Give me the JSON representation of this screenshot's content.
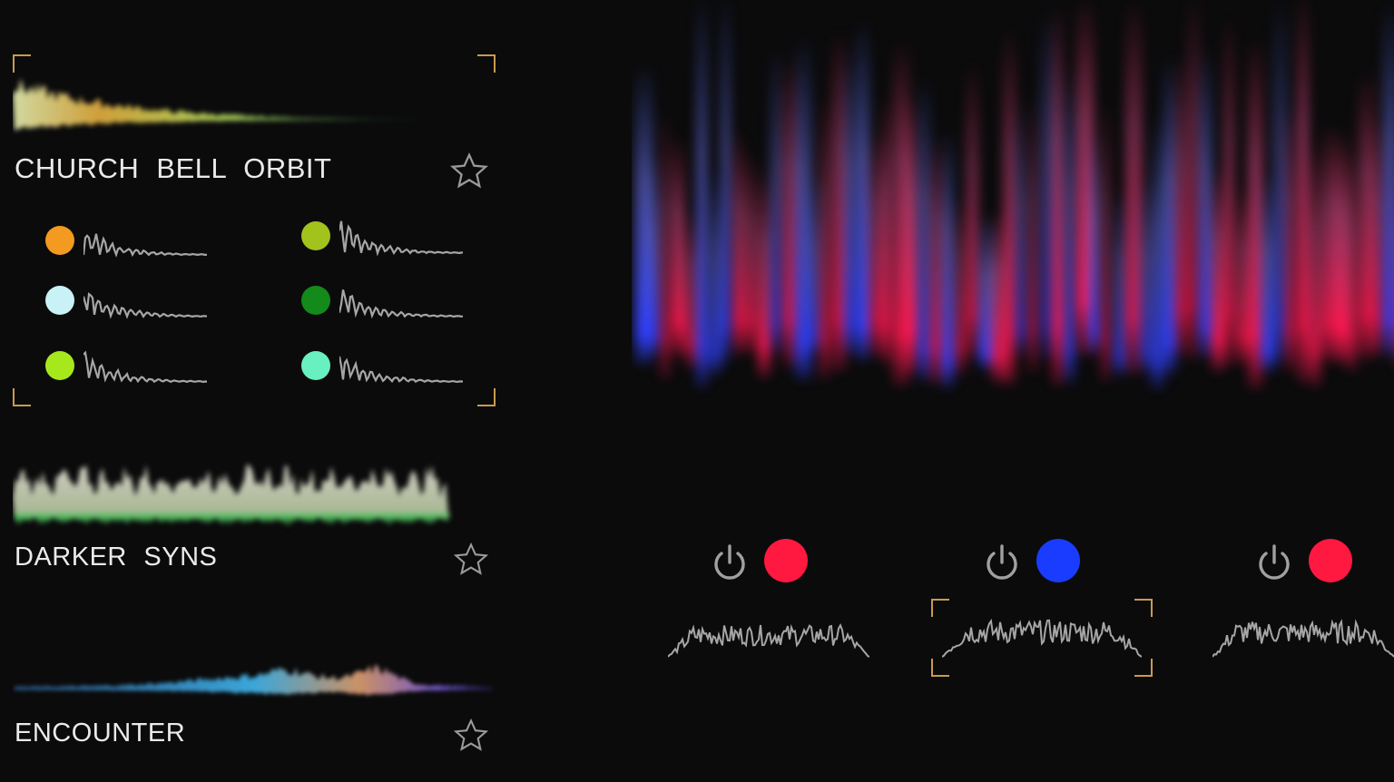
{
  "sounds": [
    {
      "title": "CHURCH  BELL  ORBIT",
      "favorite_icon": "star-outline-icon",
      "selected": true,
      "layers": [
        {
          "color": "#f39a20"
        },
        {
          "color": "#a2c21c"
        },
        {
          "color": "#c9f2f6"
        },
        {
          "color": "#138a1a"
        },
        {
          "color": "#a6e81c"
        },
        {
          "color": "#69f0c0"
        }
      ]
    },
    {
      "title": "DARKER  SYNS",
      "favorite_icon": "star-outline-icon",
      "selected": false
    },
    {
      "title": "ENCOUNTER",
      "favorite_icon": "star-outline-icon",
      "selected": false
    }
  ],
  "channels": [
    {
      "power_icon": "power-icon",
      "color": "#ff1840",
      "selected": false
    },
    {
      "power_icon": "power-icon",
      "color": "#1a3cff",
      "selected": true
    },
    {
      "power_icon": "power-icon",
      "color": "#ff1840",
      "selected": false
    }
  ],
  "colors": {
    "accent_bracket": "#c89a50",
    "waveform_line": "#a6a6a6"
  }
}
